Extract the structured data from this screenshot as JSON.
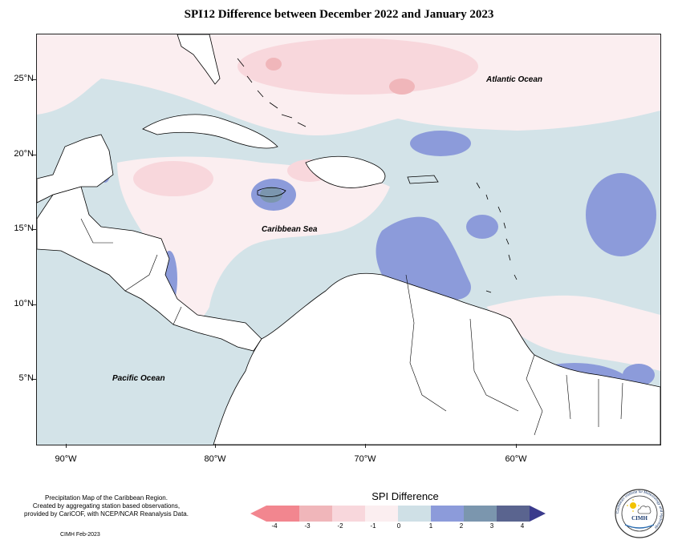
{
  "title": "SPI12 Difference between December 2022 and January 2023",
  "map": {
    "latitude_labels": [
      "25°N",
      "20°N",
      "15°N",
      "10°N",
      "5°N"
    ],
    "longitude_labels": [
      "90°W",
      "80°W",
      "70°W",
      "60°W"
    ],
    "ocean_labels": {
      "atlantic": "Atlantic Ocean",
      "caribbean": "Caribbean Sea",
      "pacific": "Pacific Ocean"
    }
  },
  "legend": {
    "title": "SPI Difference",
    "tick_labels": [
      "-4",
      "-3",
      "-2",
      "-1",
      "0",
      "1",
      "2",
      "3",
      "4"
    ],
    "colors": [
      "#f2868f",
      "#f0b6ba",
      "#f8d7dc",
      "#fbeef0",
      "#cfe0e6",
      "#8c9bda",
      "#7b96ae",
      "#5a648f",
      "#3a3a8c"
    ]
  },
  "footer": {
    "note_lines": [
      "Precipitation Map of the Caribbean Region.",
      "Created by aggregating station based observations,",
      "provided by CariCOF, with NCEP/NCAR Reanalysis Data."
    ],
    "credit": "CIMH Feb-2023"
  },
  "logo": {
    "abbreviation": "CIMH",
    "ring_text": "Caribbean Institute for Meteorology and Hydrology"
  }
}
